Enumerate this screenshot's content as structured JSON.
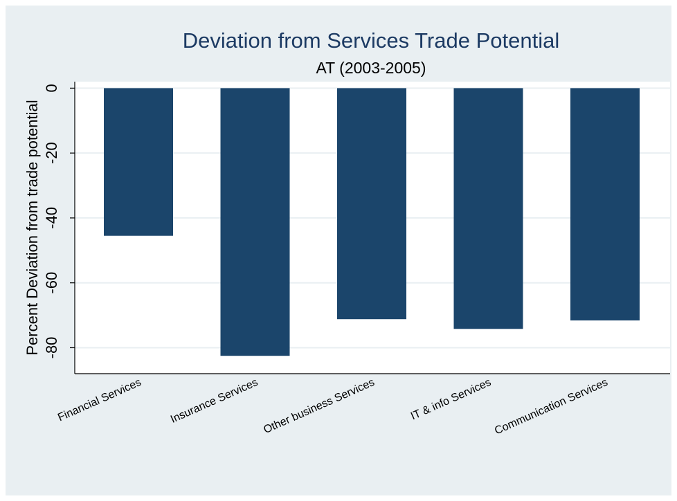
{
  "chart_data": {
    "type": "bar",
    "title": "Deviation from Services Trade Potential",
    "subtitle": "AT (2003-2005)",
    "ylabel": "Percent Deviation from trade potential",
    "xlabel": "",
    "categories": [
      "Financial Services",
      "Insurance Services",
      "Other business Services",
      "IT & info  Services",
      "Communication Services"
    ],
    "values": [
      -45.5,
      -82.5,
      -71.2,
      -74.2,
      -71.6
    ],
    "ylim": [
      -88,
      2
    ],
    "yticks": [
      0,
      -20,
      -40,
      -60,
      -80
    ],
    "ytick_labels": [
      "0",
      "-20",
      "-40",
      "-60",
      "-80"
    ],
    "grid": true,
    "colors": {
      "bar": "#1b456b",
      "background": "#e9eff2",
      "plot_background": "#ffffff",
      "grid": "#e9eff2",
      "title": "#1c3a63"
    }
  }
}
